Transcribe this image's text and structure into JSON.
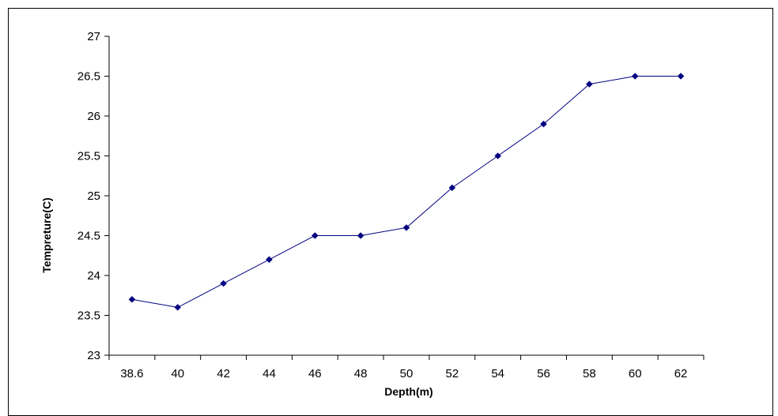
{
  "chart_data": {
    "type": "line",
    "xlabel": "Depth(m)",
    "ylabel": "Tempreture(C)",
    "categories": [
      "38.6",
      "40",
      "42",
      "44",
      "46",
      "48",
      "50",
      "52",
      "54",
      "56",
      "58",
      "60",
      "62"
    ],
    "series": [
      {
        "values": [
          23.7,
          23.6,
          23.9,
          24.2,
          24.5,
          24.5,
          24.6,
          25.1,
          25.5,
          25.9,
          26.4,
          26.5,
          26.5
        ]
      }
    ],
    "ylim": [
      23,
      27
    ],
    "yticks": [
      "23",
      "23.5",
      "24",
      "24.5",
      "25",
      "25.5",
      "26",
      "26.5",
      "27"
    ],
    "grid": false,
    "legend": "none",
    "colors": {
      "series": "#000080",
      "axis": "#000000"
    },
    "marker": "diamond"
  }
}
